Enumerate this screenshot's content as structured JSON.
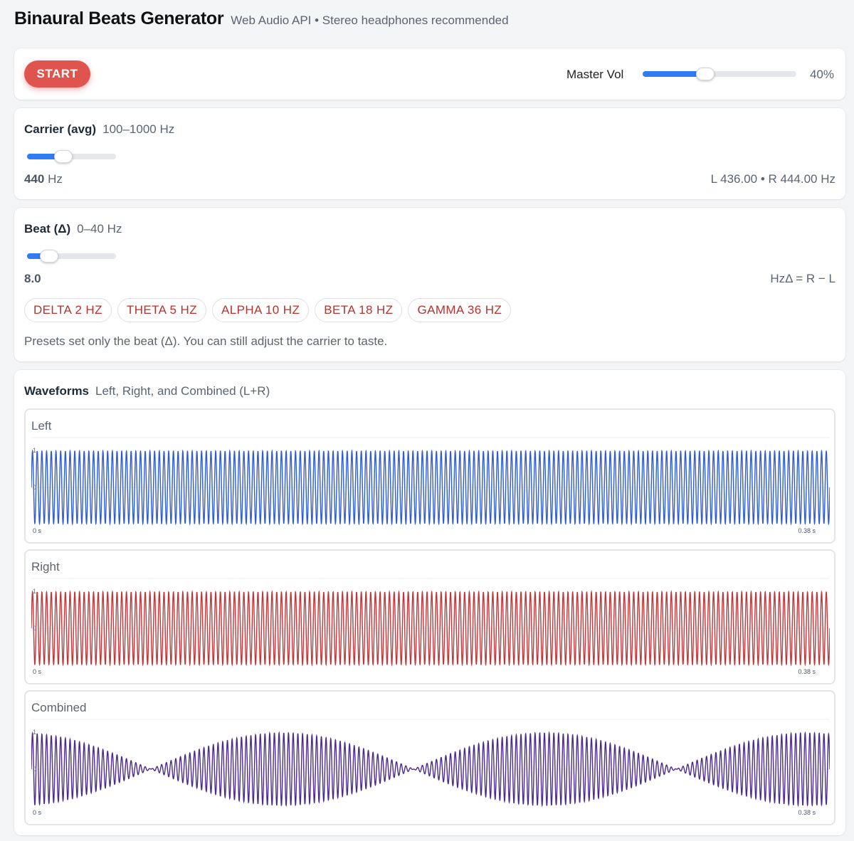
{
  "header": {
    "title": "Binaural Beats Generator",
    "subtitle": "Web Audio API • Stereo headphones recommended"
  },
  "controls": {
    "start_label": "START",
    "master_label": "Master Vol",
    "master_value": "40%",
    "master_level": 0.4
  },
  "carrier": {
    "title": "Carrier (avg)",
    "range": "100–1000 Hz",
    "value": "440",
    "unit": "Hz",
    "lr_readout": "L 436.00 • R 444.00 Hz"
  },
  "beat": {
    "title": "Beat (Δ)",
    "range": "0–40 Hz",
    "value": "8.0",
    "formula": "HzΔ = R − L",
    "presets": [
      "DELTA 2 HZ",
      "THETA 5 HZ",
      "ALPHA 10 HZ",
      "BETA 18 HZ",
      "GAMMA 36 HZ"
    ],
    "note": "Presets set only the beat (Δ). You can still adjust the carrier to taste."
  },
  "waveforms": {
    "title": "Waveforms",
    "subtitle": "Left, Right, and Combined (L+R)",
    "panels": [
      {
        "label": "Left",
        "color": "#2f5bd3",
        "freq": 436,
        "mode": "single",
        "start": "0 s",
        "end": "0.38 s",
        "ytop": "1",
        "ymid": "0"
      },
      {
        "label": "Right",
        "color": "#c0373a",
        "freq": 444,
        "mode": "single",
        "start": "0 s",
        "end": "0.38 s",
        "ytop": "1",
        "ymid": "0"
      },
      {
        "label": "Combined",
        "color": "#4c2a8e",
        "freq": 440,
        "mode": "combined",
        "start": "0 s",
        "end": "0.38 s",
        "ytop": "1",
        "ymid": "0"
      }
    ]
  }
}
